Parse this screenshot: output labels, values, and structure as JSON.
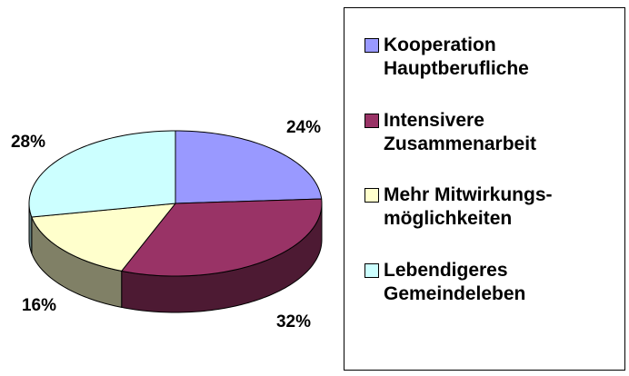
{
  "chart_data": {
    "type": "pie3d",
    "categories": [
      "Kooperation Hauptberufliche",
      "Intensivere Zusammenarbeit",
      "Mehr Mitwirkungs-möglichkeiten",
      "Lebendigeres Gemeindeleben"
    ],
    "values": [
      24,
      32,
      16,
      28
    ],
    "value_labels": [
      "24%",
      "32%",
      "16%",
      "28%"
    ],
    "colors": [
      "#9999ff",
      "#993366",
      "#ffffcc",
      "#ccffff"
    ],
    "legend": "right"
  }
}
